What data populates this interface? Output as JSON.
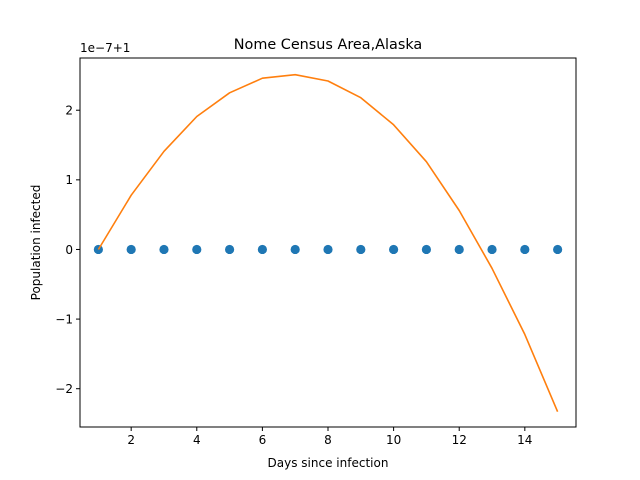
{
  "chart_data": {
    "type": "line",
    "title": "Nome Census Area,Alaska",
    "xlabel": "Days since infection",
    "ylabel": "Population infected",
    "offset_text": "1e−7+1",
    "xlim": [
      0.44,
      15.56
    ],
    "ylim": [
      -2.55,
      2.75
    ],
    "xticks": [
      2,
      4,
      6,
      8,
      10,
      12,
      14
    ],
    "yticks": [
      -2,
      -1,
      0,
      1,
      2
    ],
    "ytick_labels": [
      "−2",
      "−1",
      "0",
      "1",
      "2"
    ],
    "grid": false,
    "series": [
      {
        "kind": "scatter",
        "color": "#1f77b4",
        "x": [
          1,
          2,
          3,
          4,
          5,
          6,
          7,
          8,
          9,
          10,
          11,
          12,
          13,
          14,
          15
        ],
        "y": [
          0,
          0,
          0,
          0,
          0,
          0,
          0,
          0,
          0,
          0,
          0,
          0,
          0,
          0,
          0
        ]
      },
      {
        "kind": "line",
        "color": "#ff7f0e",
        "x": [
          1,
          2,
          3,
          4,
          5,
          6,
          7,
          8,
          9,
          10,
          11,
          12,
          13,
          14,
          15
        ],
        "y": [
          0.0,
          0.78,
          1.41,
          1.91,
          2.25,
          2.46,
          2.51,
          2.42,
          2.18,
          1.79,
          1.26,
          0.56,
          -0.27,
          -1.22,
          -2.33
        ]
      }
    ]
  }
}
